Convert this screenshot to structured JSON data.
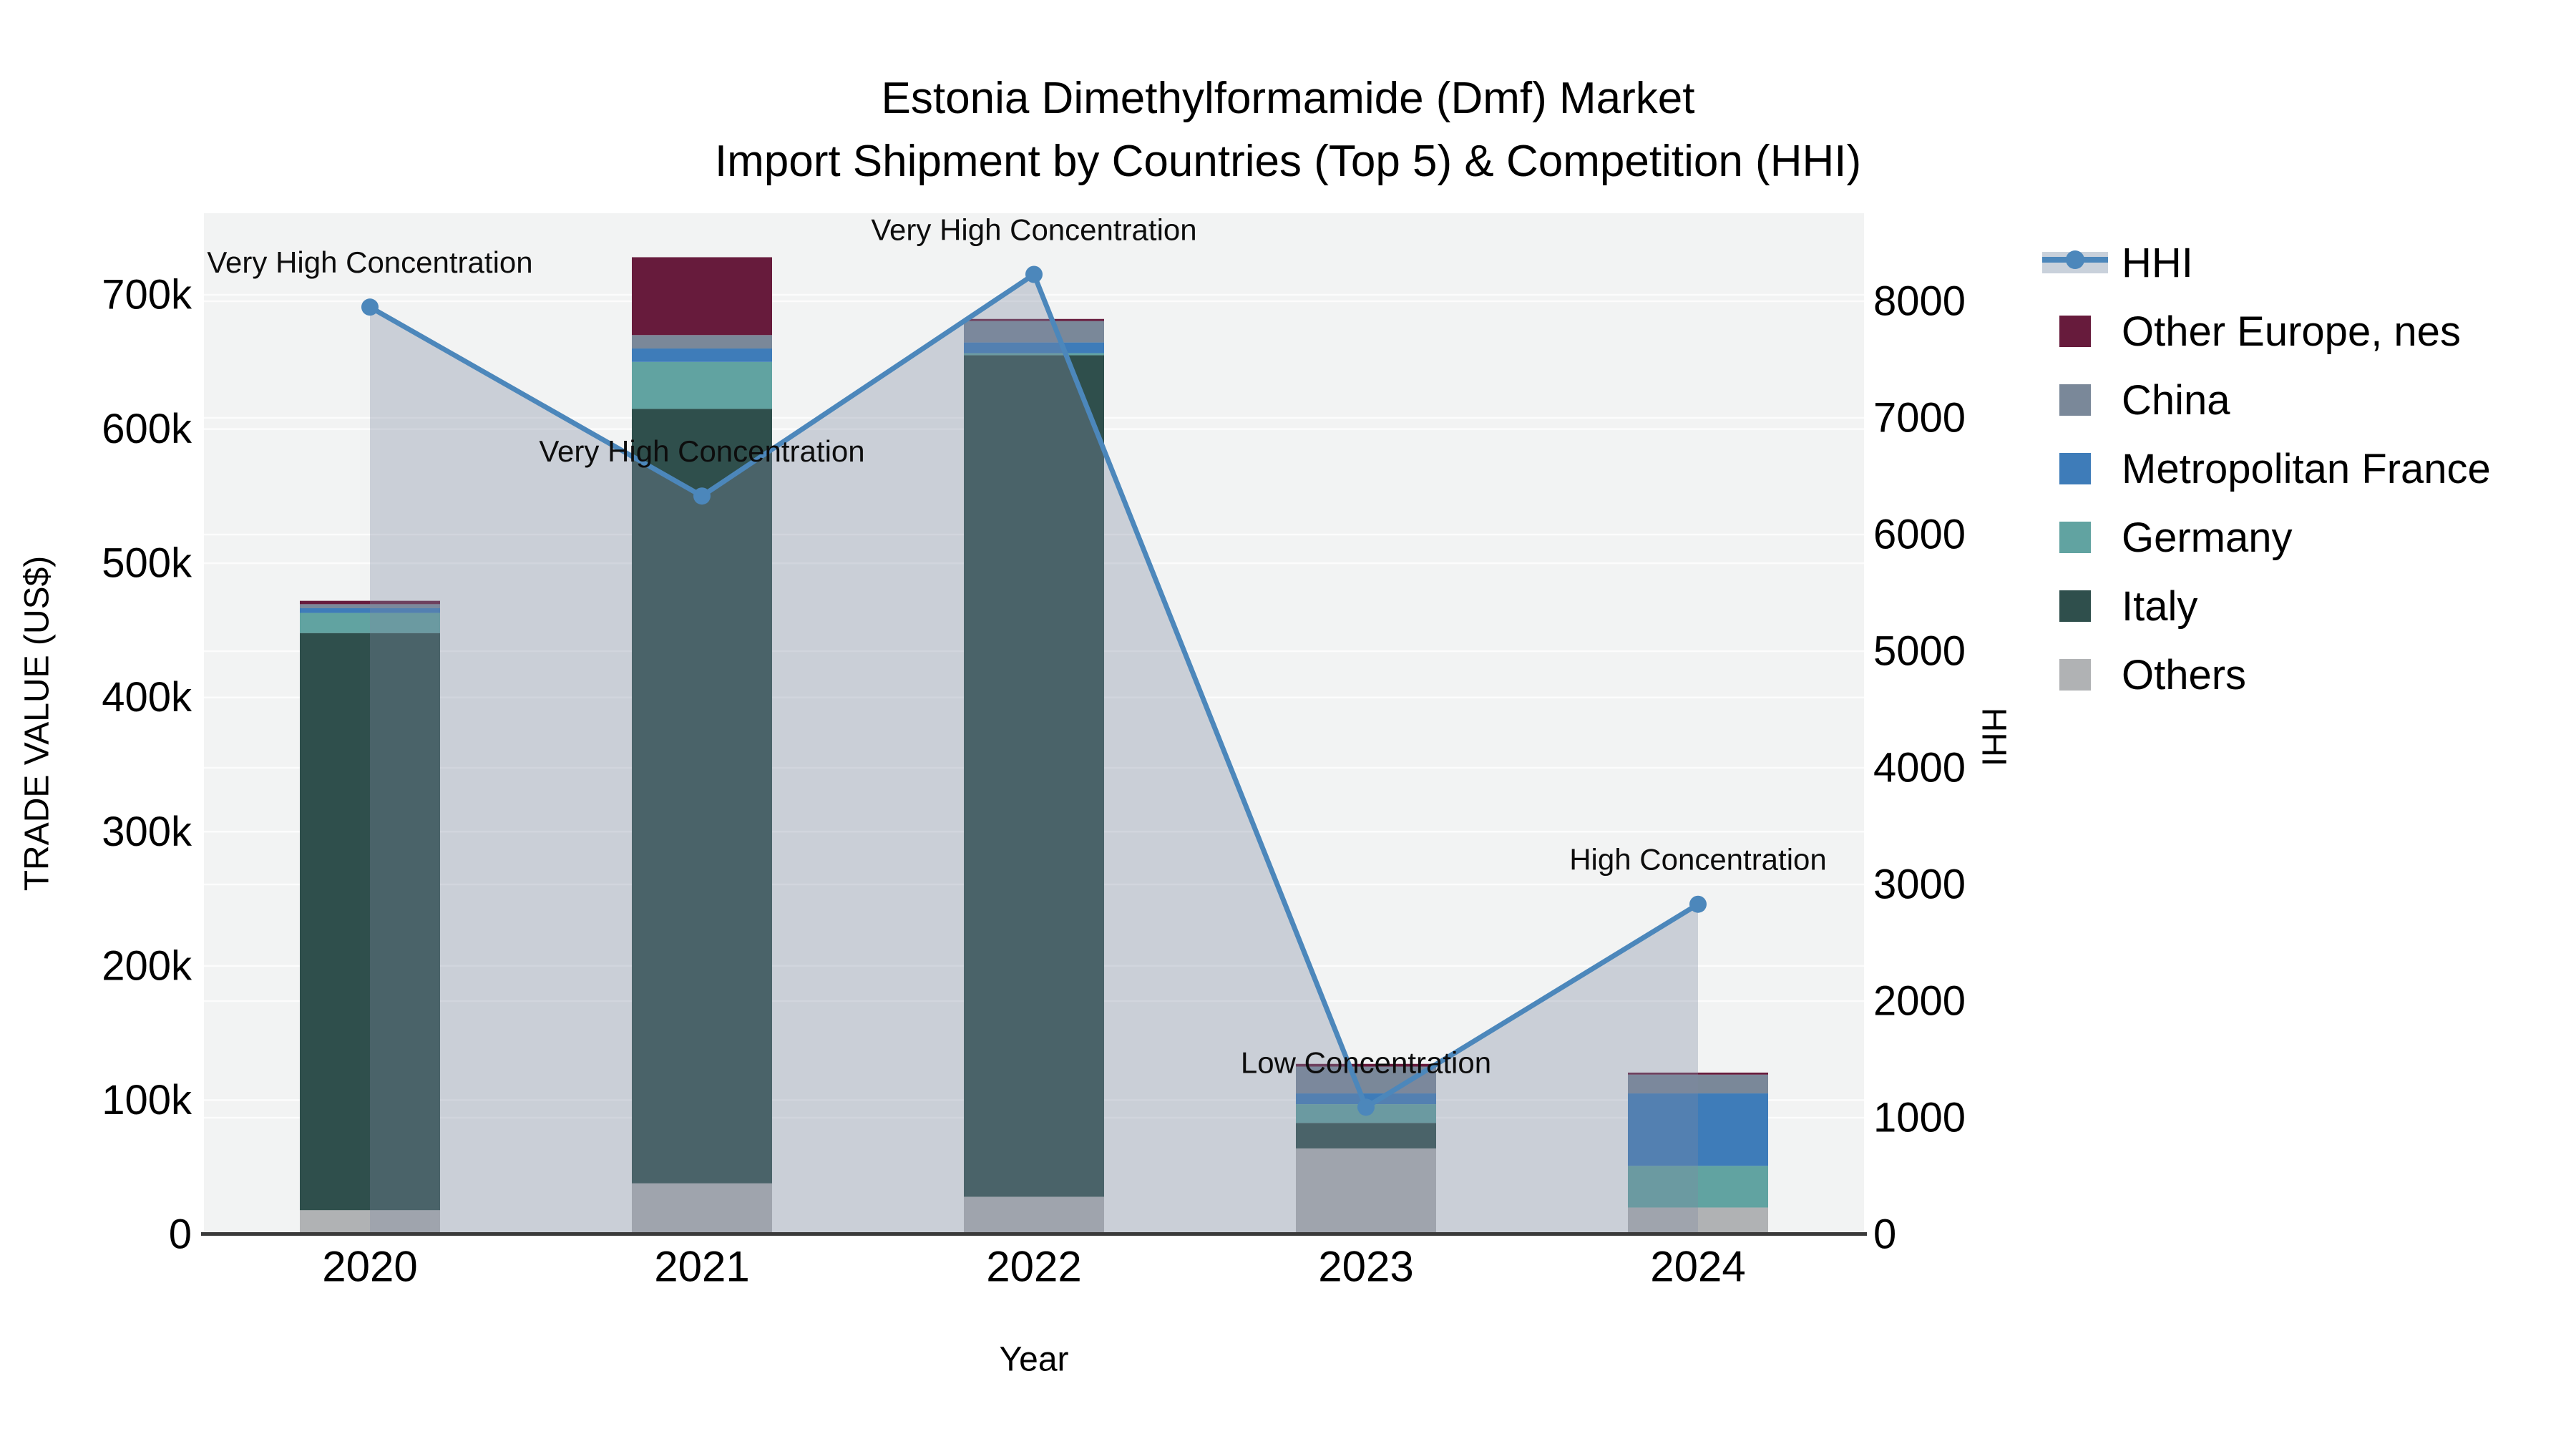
{
  "figure": {
    "title_line1": "Estonia Dimethylformamide (Dmf) Market",
    "title_line2": "Import Shipment by Countries (Top 5) & Competition (HHI)"
  },
  "chart_data": {
    "type": "combo-stacked-bar-line",
    "title": "Estonia Dimethylformamide (Dmf) Market Import Shipment by Countries (Top 5) & Competition (HHI)",
    "categories": [
      "2020",
      "2021",
      "2022",
      "2023",
      "2024"
    ],
    "bar_series": [
      {
        "name": "Others",
        "color": "#b0b2b4",
        "values_usd": [
          18000,
          38000,
          28000,
          64000,
          20000
        ]
      },
      {
        "name": "Italy",
        "color": "#2f4f4c",
        "values_usd": [
          430000,
          577000,
          627000,
          19000,
          0
        ]
      },
      {
        "name": "Germany",
        "color": "#61a3a1",
        "values_usd": [
          15000,
          35000,
          1500,
          14000,
          31000
        ]
      },
      {
        "name": "Metropolitan France",
        "color": "#3e7cb9",
        "values_usd": [
          3500,
          10000,
          8000,
          8000,
          54000
        ]
      },
      {
        "name": "China",
        "color": "#7a8899",
        "values_usd": [
          3000,
          10000,
          16000,
          20000,
          14000
        ]
      },
      {
        "name": "Other Europe, nes",
        "color": "#671b3c",
        "values_usd": [
          2500,
          58000,
          1500,
          2000,
          1500
        ]
      }
    ],
    "line_series": {
      "name": "HHI",
      "color": "#4c87bb",
      "area_fill": "rgba(125,138,160,0.34)",
      "values": [
        7950,
        6330,
        8230,
        1090,
        2830
      ]
    },
    "annotations": [
      {
        "x": "2020",
        "text": "Very High Concentration"
      },
      {
        "x": "2021",
        "text": "Very High Concentration"
      },
      {
        "x": "2022",
        "text": "Very High Concentration"
      },
      {
        "x": "2023",
        "text": "Low Concentration"
      },
      {
        "x": "2024",
        "text": "High Concentration"
      }
    ],
    "left_axis": {
      "label": "TRADE VALUE (US$)",
      "tick_values": [
        0,
        100000,
        200000,
        300000,
        400000,
        500000,
        600000,
        700000
      ],
      "tick_labels": [
        "0",
        "100k",
        "200k",
        "300k",
        "400k",
        "500k",
        "600k",
        "700k"
      ],
      "range": [
        0,
        760000
      ]
    },
    "right_axis": {
      "label": "HHI",
      "tick_values": [
        0,
        1000,
        2000,
        3000,
        4000,
        5000,
        6000,
        7000,
        8000
      ],
      "tick_labels": [
        "0",
        "1000",
        "2000",
        "3000",
        "4000",
        "5000",
        "6000",
        "7000",
        "8000"
      ],
      "range": [
        0,
        8750
      ]
    },
    "x_axis": {
      "label": "Year"
    },
    "legend": [
      {
        "label": "HHI",
        "type": "line",
        "color": "#4c87bb",
        "band_color": "#c9d1db"
      },
      {
        "label": "Other Europe, nes",
        "type": "swatch",
        "color": "#671b3c"
      },
      {
        "label": "China",
        "type": "swatch",
        "color": "#7a8899"
      },
      {
        "label": "Metropolitan France",
        "type": "swatch",
        "color": "#3e7cb9"
      },
      {
        "label": "Germany",
        "type": "swatch",
        "color": "#61a3a1"
      },
      {
        "label": "Italy",
        "type": "swatch",
        "color": "#2f4f4c"
      },
      {
        "label": "Others",
        "type": "swatch",
        "color": "#b0b2b4"
      }
    ],
    "plot_background": "#f2f3f3",
    "gridline_color": "rgba(255,255,255,0.75)",
    "axis_line_color": "#3a3a3a"
  }
}
